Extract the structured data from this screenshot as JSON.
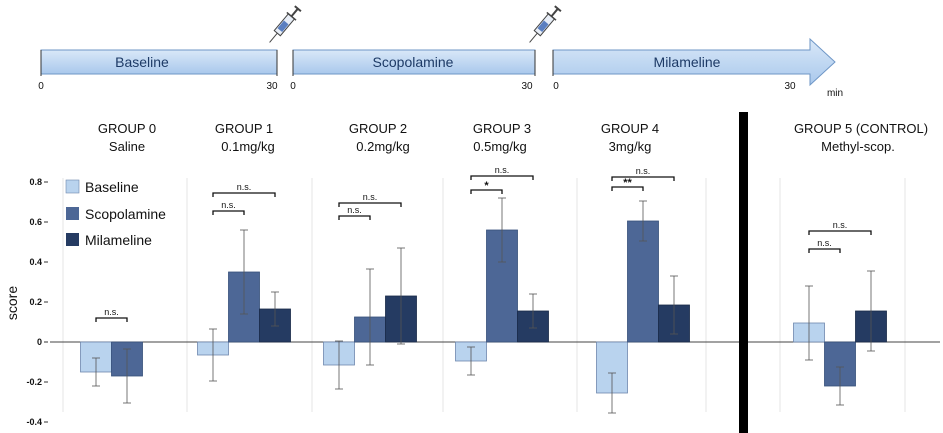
{
  "timeline": {
    "segments": [
      {
        "label": "Baseline",
        "start": "0",
        "end": "30"
      },
      {
        "label": "Scopolamine",
        "start": "0",
        "end": "30"
      },
      {
        "label": "Milameline",
        "start": "0",
        "end": "30"
      }
    ],
    "unit": "min"
  },
  "chart_data": {
    "type": "bar",
    "ylabel": "score",
    "ylim": [
      -0.4,
      0.8
    ],
    "yticks": [
      "0.8",
      "0.6",
      "0.4",
      "0.2",
      "0",
      "-0.2",
      "-0.4"
    ],
    "grid": true,
    "legend_position": "top-left",
    "groups": [
      {
        "name": "GROUP 0",
        "subtitle": "Saline"
      },
      {
        "name": "GROUP 1",
        "subtitle": "0.1mg/kg"
      },
      {
        "name": "GROUP 2",
        "subtitle": "0.2mg/kg"
      },
      {
        "name": "GROUP 3",
        "subtitle": "0.5mg/kg"
      },
      {
        "name": "GROUP 4",
        "subtitle": "3mg/kg"
      },
      {
        "name": "GROUP 5 (CONTROL)",
        "subtitle": "Methyl-scop."
      }
    ],
    "series": [
      {
        "name": "Baseline",
        "color": "#b9d3ee",
        "values": [
          -0.15,
          -0.065,
          -0.115,
          -0.095,
          -0.255,
          0.095
        ],
        "errors": [
          0.07,
          0.13,
          0.12,
          0.07,
          0.1,
          0.185
        ]
      },
      {
        "name": "Scopolamine",
        "color": "#4d6796",
        "values": [
          -0.17,
          0.35,
          0.125,
          0.56,
          0.605,
          -0.22
        ],
        "errors": [
          0.135,
          0.21,
          0.24,
          0.16,
          0.1,
          0.095
        ]
      },
      {
        "name": "Milameline",
        "color": "#253b62",
        "values": [
          null,
          0.165,
          0.23,
          0.155,
          0.185,
          0.155
        ],
        "errors": [
          null,
          0.085,
          0.24,
          0.085,
          0.145,
          0.2
        ]
      }
    ],
    "annotations": [
      {
        "group": 0,
        "from": 0,
        "to": 1,
        "label": "n.s."
      },
      {
        "group": 1,
        "from": 0,
        "to": 1,
        "label": "n.s."
      },
      {
        "group": 1,
        "from": 0,
        "to": 2,
        "label": "n.s."
      },
      {
        "group": 2,
        "from": 0,
        "to": 1,
        "label": "n.s."
      },
      {
        "group": 2,
        "from": 0,
        "to": 2,
        "label": "n.s."
      },
      {
        "group": 3,
        "from": 0,
        "to": 1,
        "label": "*"
      },
      {
        "group": 3,
        "from": 0,
        "to": 2,
        "label": "n.s."
      },
      {
        "group": 4,
        "from": 0,
        "to": 1,
        "label": "**"
      },
      {
        "group": 4,
        "from": 0,
        "to": 2,
        "label": "n.s."
      },
      {
        "group": 5,
        "from": 0,
        "to": 1,
        "label": "n.s."
      },
      {
        "group": 5,
        "from": 0,
        "to": 2,
        "label": "n.s."
      }
    ]
  }
}
